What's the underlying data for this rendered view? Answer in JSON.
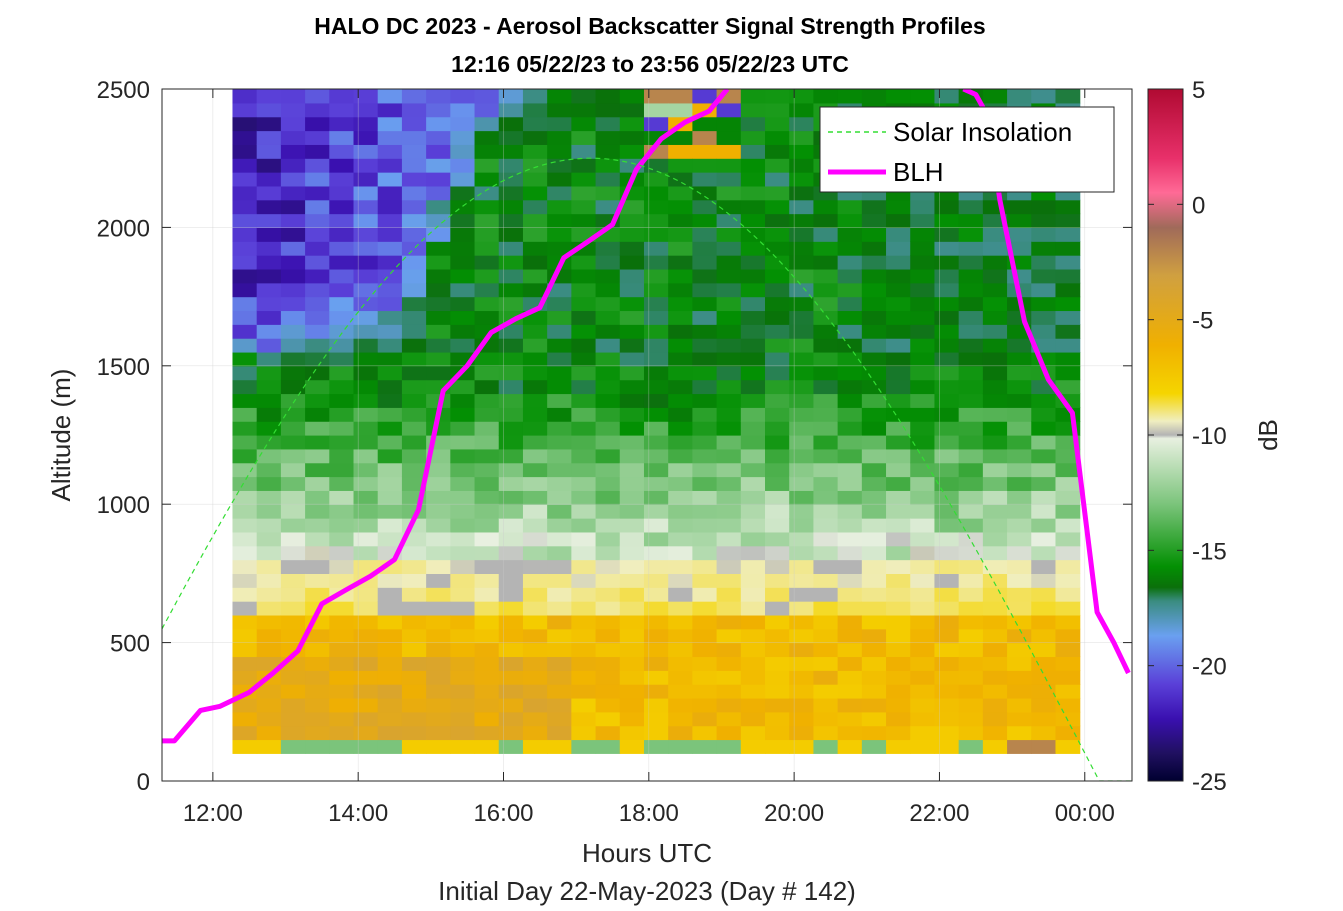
{
  "chart_data": {
    "type": "heatmap",
    "title": "HALO DC 2023 - Aerosol Backscatter Signal Strength Profiles",
    "subtitle": "12:16 05/22/23 to 23:56 05/22/23  UTC",
    "xlabel": "Hours UTC",
    "footnote": "Initial Day 22-May-2023 (Day # 142)",
    "ylabel": "Altitude (m)",
    "xlim": [
      11.3,
      24.65
    ],
    "ylim": [
      0,
      2500
    ],
    "x_ticks": [
      12,
      14,
      16,
      18,
      20,
      22,
      24
    ],
    "x_tick_labels": [
      "12:00",
      "14:00",
      "16:00",
      "18:00",
      "20:00",
      "22:00",
      "00:00"
    ],
    "y_ticks": [
      0,
      500,
      1000,
      1500,
      2000,
      2500
    ],
    "y_tick_labels": [
      "0",
      "500",
      "1000",
      "1500",
      "2000",
      "2500"
    ],
    "grid": true,
    "colorbar": {
      "label": "dB",
      "range": [
        -25,
        5
      ],
      "ticks": [
        5,
        0,
        -5,
        -10,
        -15,
        -20,
        -25
      ],
      "tick_labels": [
        "5",
        "0",
        "-5",
        "-10",
        "-15",
        "-20",
        "-25"
      ]
    },
    "heatmap_extent": {
      "x": [
        12.27,
        23.93
      ],
      "y": [
        100,
        2500
      ]
    },
    "legend": {
      "position": "top-right",
      "entries": [
        {
          "label": "Solar Insolation",
          "color": "#33dd33",
          "style": "dashed"
        },
        {
          "label": "BLH",
          "color": "#ff00ff",
          "style": "solid"
        }
      ]
    },
    "series": [
      {
        "name": "BLH",
        "color": "#ff00ff",
        "x": [
          11.3,
          11.47,
          11.83,
          12.1,
          12.5,
          12.83,
          13.17,
          13.5,
          13.83,
          14.17,
          14.5,
          14.83,
          15.17,
          15.5,
          15.83,
          16.17,
          16.5,
          16.83,
          17.17,
          17.5,
          17.83,
          18.17,
          18.5,
          18.83,
          19.08
        ],
        "y": [
          145,
          145,
          255,
          270,
          320,
          390,
          470,
          640,
          690,
          740,
          800,
          980,
          1410,
          1500,
          1620,
          1670,
          1710,
          1890,
          1950,
          2010,
          2210,
          2320,
          2380,
          2420,
          2500
        ]
      },
      {
        "name": "BLH",
        "color": "#ff00ff",
        "x": [
          22.33,
          22.5,
          22.67,
          22.83,
          23.17,
          23.5,
          23.83,
          24.08,
          24.17,
          24.4,
          24.6
        ],
        "y": [
          2500,
          2480,
          2400,
          2100,
          1660,
          1450,
          1330,
          800,
          610,
          500,
          390
        ]
      },
      {
        "name": "Solar Insolation",
        "color": "#33dd33",
        "dashed": true,
        "peak_hour": 17.2,
        "half_width_hours": 7.0,
        "peak_altitude": 2250
      }
    ]
  }
}
